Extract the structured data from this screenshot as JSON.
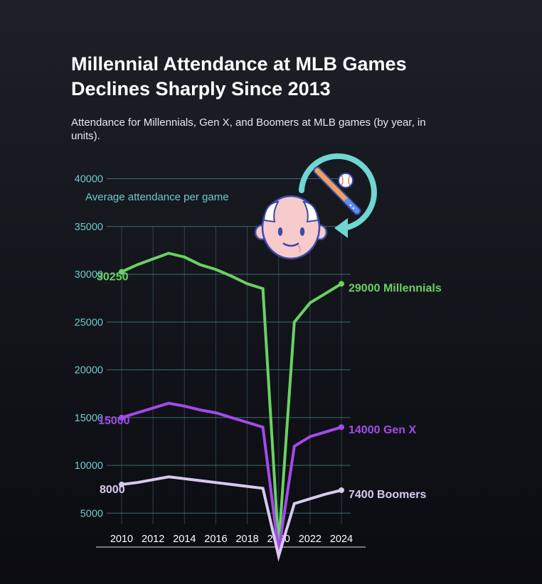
{
  "header": {
    "title": "Millennial Attendance at MLB Games Declines Sharply Since 2013",
    "subtitle": "Attendance for Millennials, Gen X, and Boomers at MLB games (by year, in units)."
  },
  "colors": {
    "grid": "#4a7f85",
    "y_tick": "#6ec9cc",
    "x_tick": "#ffffff",
    "axis": "#9a9a9a",
    "millennials": "#6ad162",
    "gen_x": "#a24bea",
    "boomers": "#d9c9ee"
  },
  "icons": [
    "baseball-bat-icon",
    "baseball-icon",
    "rotate-arrow-icon",
    "elderly-face-icon"
  ],
  "chart_data": {
    "type": "line",
    "title": "Millennial Attendance at MLB Games Declines Sharply Since 2013",
    "subtitle": "Attendance for Millennials, Gen X, and Boomers at MLB games (by year, in units).",
    "ylabel": "Average attendance per game",
    "xlabel": "",
    "ylim": [
      0,
      40000
    ],
    "xlim": [
      2010,
      2024
    ],
    "y_ticks": [
      5000,
      10000,
      15000,
      20000,
      25000,
      30000,
      35000,
      40000
    ],
    "x_ticks": [
      2010,
      2012,
      2014,
      2016,
      2018,
      2020,
      2022,
      2024
    ],
    "grid": true,
    "legend": "none",
    "x": [
      2010,
      2011,
      2012,
      2013,
      2014,
      2015,
      2016,
      2017,
      2018,
      2019,
      2020,
      2021,
      2022,
      2023,
      2024
    ],
    "series": [
      {
        "name": "Millennials",
        "color_key": "millennials",
        "values": [
          30250,
          31000,
          31600,
          32200,
          31800,
          31000,
          30500,
          29800,
          29000,
          28500,
          1500,
          25000,
          27000,
          28000,
          29000
        ],
        "start_label": "30250",
        "end_label": "29000 Millennials"
      },
      {
        "name": "Gen X",
        "color_key": "gen_x",
        "values": [
          15000,
          15500,
          16000,
          16500,
          16200,
          15800,
          15500,
          15000,
          14500,
          14000,
          1000,
          12000,
          13000,
          13500,
          14000
        ],
        "start_label": "15000",
        "end_label": "14000 Gen X"
      },
      {
        "name": "Boomers",
        "color_key": "boomers",
        "values": [
          8000,
          8200,
          8500,
          8800,
          8600,
          8400,
          8200,
          8000,
          7800,
          7600,
          500,
          6000,
          6500,
          7000,
          7400
        ],
        "start_label": "8000",
        "end_label": "7400 Boomers"
      }
    ]
  }
}
